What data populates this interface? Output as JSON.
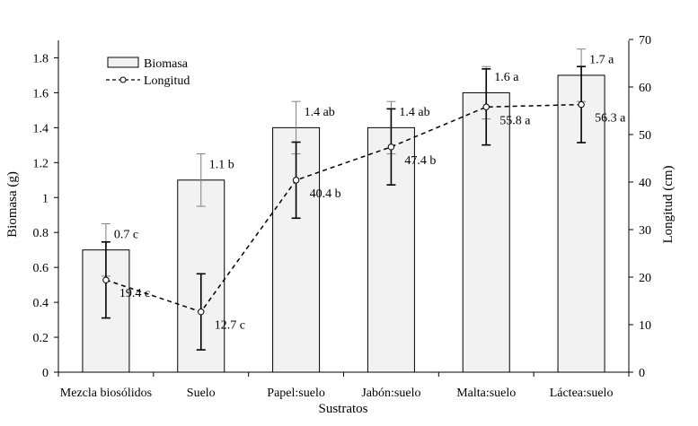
{
  "chart_data": {
    "type": "bar",
    "title": "",
    "xlabel": "Sustratos",
    "ylabel": "Biomasa (g)",
    "y2label": "Longitud (cm)",
    "categories": [
      "Mezcla biosólidos",
      "Suelo",
      "Papel:suelo",
      "Jabón:suelo",
      "Malta:suelo",
      "Láctea:suelo"
    ],
    "ylim": [
      0,
      1.9
    ],
    "yticks": [
      "0",
      "0.2",
      "0.4",
      "0.6",
      "0.8",
      "1",
      "1.2",
      "1.4",
      "1.6",
      "1.8"
    ],
    "y2lim": [
      0,
      70
    ],
    "y2ticks": [
      "0",
      "10",
      "20",
      "30",
      "40",
      "50",
      "60",
      "70"
    ],
    "grid": false,
    "legend_position": "top-left",
    "series": [
      {
        "name": "Biomasa",
        "type": "bar",
        "axis": "left",
        "values": [
          0.7,
          1.1,
          1.4,
          1.4,
          1.6,
          1.7
        ],
        "errors": [
          0.15,
          0.15,
          0.15,
          0.15,
          0.15,
          0.15
        ],
        "labels": [
          "0.7 c",
          "1.1 b",
          "1.4 ab",
          "1.4 ab",
          "1.6 a",
          "1.7 a"
        ],
        "color": "#f2f2f2"
      },
      {
        "name": "Longitud",
        "type": "line",
        "axis": "right",
        "style": "dashed",
        "values": [
          19.4,
          12.7,
          40.4,
          47.4,
          55.8,
          56.3
        ],
        "errors": [
          8,
          8,
          8,
          8,
          8,
          8
        ],
        "labels": [
          "19.4 c",
          "12.7 c",
          "40.4 b",
          "47.4 b",
          "55.8 a",
          "56.3 a"
        ],
        "color": "#000000"
      }
    ]
  }
}
